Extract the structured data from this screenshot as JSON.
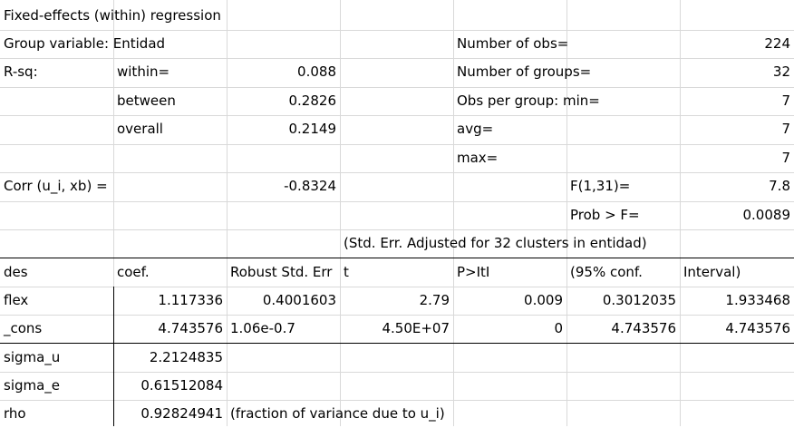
{
  "header": {
    "title": "Fixed-effects (within) regression",
    "group_variable": "Group variable: Entidad",
    "rsq_label": "R-sq:",
    "within_label": "within=",
    "within_value": "0.088",
    "between_label": "between",
    "between_value": "0.2826",
    "overall_label": "overall",
    "overall_value": "0.2149",
    "corr_label": "Corr (u_i, xb) =",
    "corr_value": "-0.8324",
    "nobs_label": "Number of obs=",
    "nobs_value": "224",
    "ngroups_label": "Number of groups=",
    "ngroups_value": "32",
    "opg_min_label": "Obs per group: min=",
    "opg_min_value": "7",
    "avg_label": "avg=",
    "avg_value": "7",
    "max_label": "max=",
    "max_value": "7",
    "f_label": "F(1,31)=",
    "f_value": "7.8",
    "probf_label": "Prob > F=",
    "probf_value": "0.0089",
    "note": "(Std. Err. Adjusted for 32 clusters in entidad)"
  },
  "table": {
    "columns": [
      "des",
      "coef.",
      "Robust Std. Err",
      "t",
      "P>ItI",
      "(95% conf.",
      "Interval)"
    ],
    "rows": [
      [
        "flex",
        "1.117336",
        "0.4001603",
        "2.79",
        "0.009",
        "0.3012035",
        "1.933468"
      ],
      [
        "_cons",
        "4.743576",
        "1.06e-0.7",
        "4.50E+07",
        "0",
        "4.743576",
        "4.743576"
      ]
    ]
  },
  "footer": {
    "sigma_u_label": "sigma_u",
    "sigma_u_value": "2.2124835",
    "sigma_e_label": "sigma_e",
    "sigma_e_value": "0.61512084",
    "rho_label": "rho",
    "rho_value": "0.92824941",
    "rho_note": "(fraction of variance due to u_i)"
  }
}
